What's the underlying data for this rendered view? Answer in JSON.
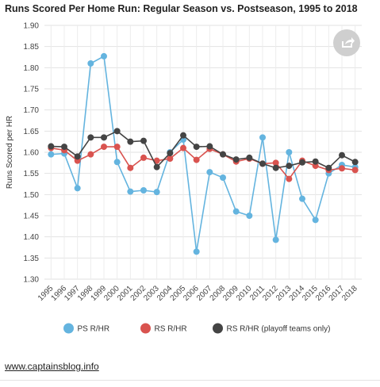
{
  "chart_data": {
    "type": "line",
    "title": "Runs Scored Per Home Run: Regular Season vs. Postseason, 1995 to 2018",
    "xlabel": "",
    "ylabel": "Runs Scored per HR",
    "ylim": [
      1.3,
      1.9
    ],
    "yticks": [
      "1.30",
      "1.35",
      "1.40",
      "1.45",
      "1.50",
      "1.55",
      "1.60",
      "1.65",
      "1.70",
      "1.75",
      "1.80",
      "1.85",
      "1.90"
    ],
    "categories": [
      "1995",
      "1996",
      "1997",
      "1998",
      "1999",
      "2000",
      "2001",
      "2002",
      "2003",
      "2004",
      "2005",
      "2006",
      "2007",
      "2008",
      "2009",
      "2010",
      "2011",
      "2012",
      "2013",
      "2014",
      "2015",
      "2016",
      "2017",
      "2018"
    ],
    "grid": true,
    "legend_position": "bottom",
    "series": [
      {
        "name": "PS R/HR",
        "color": "#64b4df",
        "values": [
          1.595,
          1.597,
          1.515,
          1.81,
          1.827,
          1.577,
          1.507,
          1.51,
          1.506,
          1.6,
          1.63,
          1.365,
          1.553,
          1.54,
          1.46,
          1.45,
          1.635,
          1.393,
          1.6,
          1.49,
          1.44,
          1.55,
          1.57,
          1.565
        ]
      },
      {
        "name": "RS R/HR",
        "color": "#d9534f",
        "values": [
          1.61,
          1.605,
          1.58,
          1.595,
          1.613,
          1.613,
          1.563,
          1.587,
          1.58,
          1.585,
          1.61,
          1.582,
          1.608,
          1.595,
          1.578,
          1.585,
          1.573,
          1.575,
          1.537,
          1.58,
          1.568,
          1.558,
          1.562,
          1.558
        ]
      },
      {
        "name": "RS R/HR (playoff teams only)",
        "color": "#444444",
        "values": [
          1.614,
          1.613,
          1.59,
          1.635,
          1.635,
          1.65,
          1.625,
          1.627,
          1.565,
          1.598,
          1.64,
          1.613,
          1.614,
          1.595,
          1.583,
          1.587,
          1.573,
          1.563,
          1.568,
          1.576,
          1.578,
          1.563,
          1.593,
          1.577
        ]
      }
    ]
  },
  "footer": {
    "source_link": "www.captainsblog.info",
    "share_icon": "share-icon"
  }
}
